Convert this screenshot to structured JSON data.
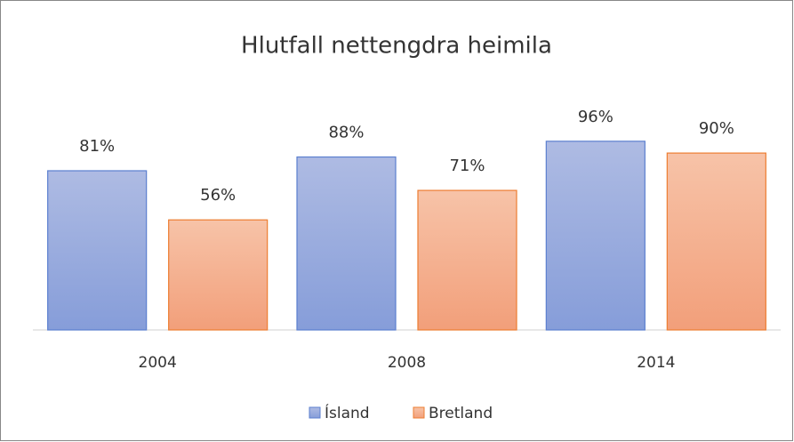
{
  "chart_data": {
    "type": "bar",
    "title": "Hlutfall nettengdra heimila",
    "categories": [
      "2004",
      "2008",
      "2014"
    ],
    "series": [
      {
        "name": "Ísland",
        "color": "#8fa4dc",
        "values": [
          81,
          88,
          96
        ],
        "value_labels": [
          "81%",
          "88%",
          "96%"
        ]
      },
      {
        "name": "Bretland",
        "color": "#f4ab88",
        "values": [
          56,
          71,
          90
        ],
        "value_labels": [
          "56%",
          "71%",
          "90%"
        ]
      }
    ],
    "legend": "bottom"
  }
}
